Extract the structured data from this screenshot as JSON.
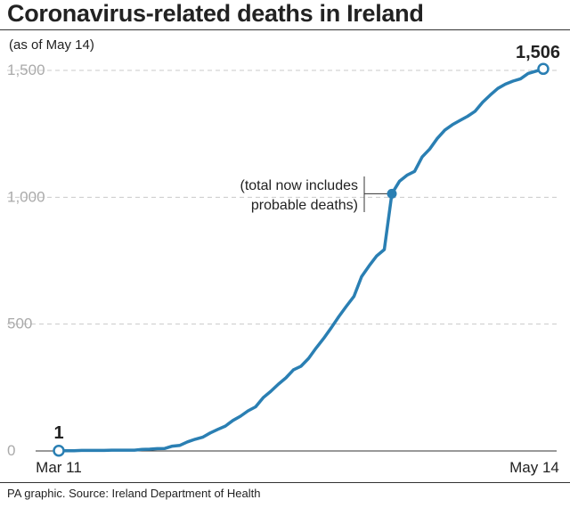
{
  "header": {
    "title": "Coronavirus-related deaths in Ireland",
    "subtitle": "(as of May 14)"
  },
  "footer": {
    "source": "PA graphic. Source: Ireland Department of Health"
  },
  "colors": {
    "line": "#2a7fb3",
    "grid": "#c9c9c9",
    "tick_text": "#aaaaaa",
    "text": "#222222"
  },
  "chart_data": {
    "type": "line",
    "title": "Coronavirus-related deaths in Ireland",
    "subtitle": "(as of May 14)",
    "xlabel": "",
    "ylabel": "",
    "x_start": "Mar 11",
    "x_end": "May 14",
    "x_tick_labels": [
      "Mar 11",
      "May 14"
    ],
    "ylim": [
      0,
      1500
    ],
    "y_ticks": [
      0,
      500,
      1000,
      1500
    ],
    "y_tick_labels": [
      "0",
      "500",
      "1,000",
      "1,500"
    ],
    "grid": true,
    "series": [
      {
        "name": "",
        "dates": [
          "Mar 11",
          "Mar 12",
          "Mar 13",
          "Mar 14",
          "Mar 15",
          "Mar 16",
          "Mar 17",
          "Mar 18",
          "Mar 19",
          "Mar 20",
          "Mar 21",
          "Mar 22",
          "Mar 23",
          "Mar 24",
          "Mar 25",
          "Mar 26",
          "Mar 27",
          "Mar 28",
          "Mar 29",
          "Mar 30",
          "Mar 31",
          "Apr 1",
          "Apr 2",
          "Apr 3",
          "Apr 4",
          "Apr 5",
          "Apr 6",
          "Apr 7",
          "Apr 8",
          "Apr 9",
          "Apr 10",
          "Apr 11",
          "Apr 12",
          "Apr 13",
          "Apr 14",
          "Apr 15",
          "Apr 16",
          "Apr 17",
          "Apr 18",
          "Apr 19",
          "Apr 20",
          "Apr 21",
          "Apr 22",
          "Apr 23",
          "Apr 24",
          "Apr 25",
          "Apr 26",
          "Apr 27",
          "Apr 28",
          "Apr 29",
          "Apr 30",
          "May 1",
          "May 2",
          "May 3",
          "May 4",
          "May 5",
          "May 6",
          "May 7",
          "May 8",
          "May 9",
          "May 10",
          "May 11",
          "May 12",
          "May 13",
          "May 14"
        ],
        "values": [
          1,
          1,
          1,
          2,
          2,
          2,
          2,
          3,
          3,
          3,
          3,
          6,
          7,
          9,
          10,
          19,
          22,
          36,
          46,
          54,
          71,
          85,
          98,
          120,
          137,
          158,
          174,
          210,
          235,
          263,
          288,
          320,
          334,
          365,
          406,
          444,
          486,
          530,
          571,
          610,
          687,
          730,
          769,
          794,
          1014,
          1063,
          1087,
          1102,
          1159,
          1190,
          1232,
          1265,
          1286,
          1303,
          1319,
          1339,
          1375,
          1403,
          1429,
          1446,
          1458,
          1467,
          1488,
          1497,
          1506
        ]
      }
    ],
    "data_labels": [
      {
        "x": "Mar 11",
        "value": 1,
        "label": "1"
      },
      {
        "x": "May 14",
        "value": 1506,
        "label": "1,506"
      }
    ],
    "annotations": [
      {
        "x": "Apr 24",
        "value": 1014,
        "text_lines": [
          "(total now includes",
          "probable deaths)"
        ]
      }
    ]
  }
}
